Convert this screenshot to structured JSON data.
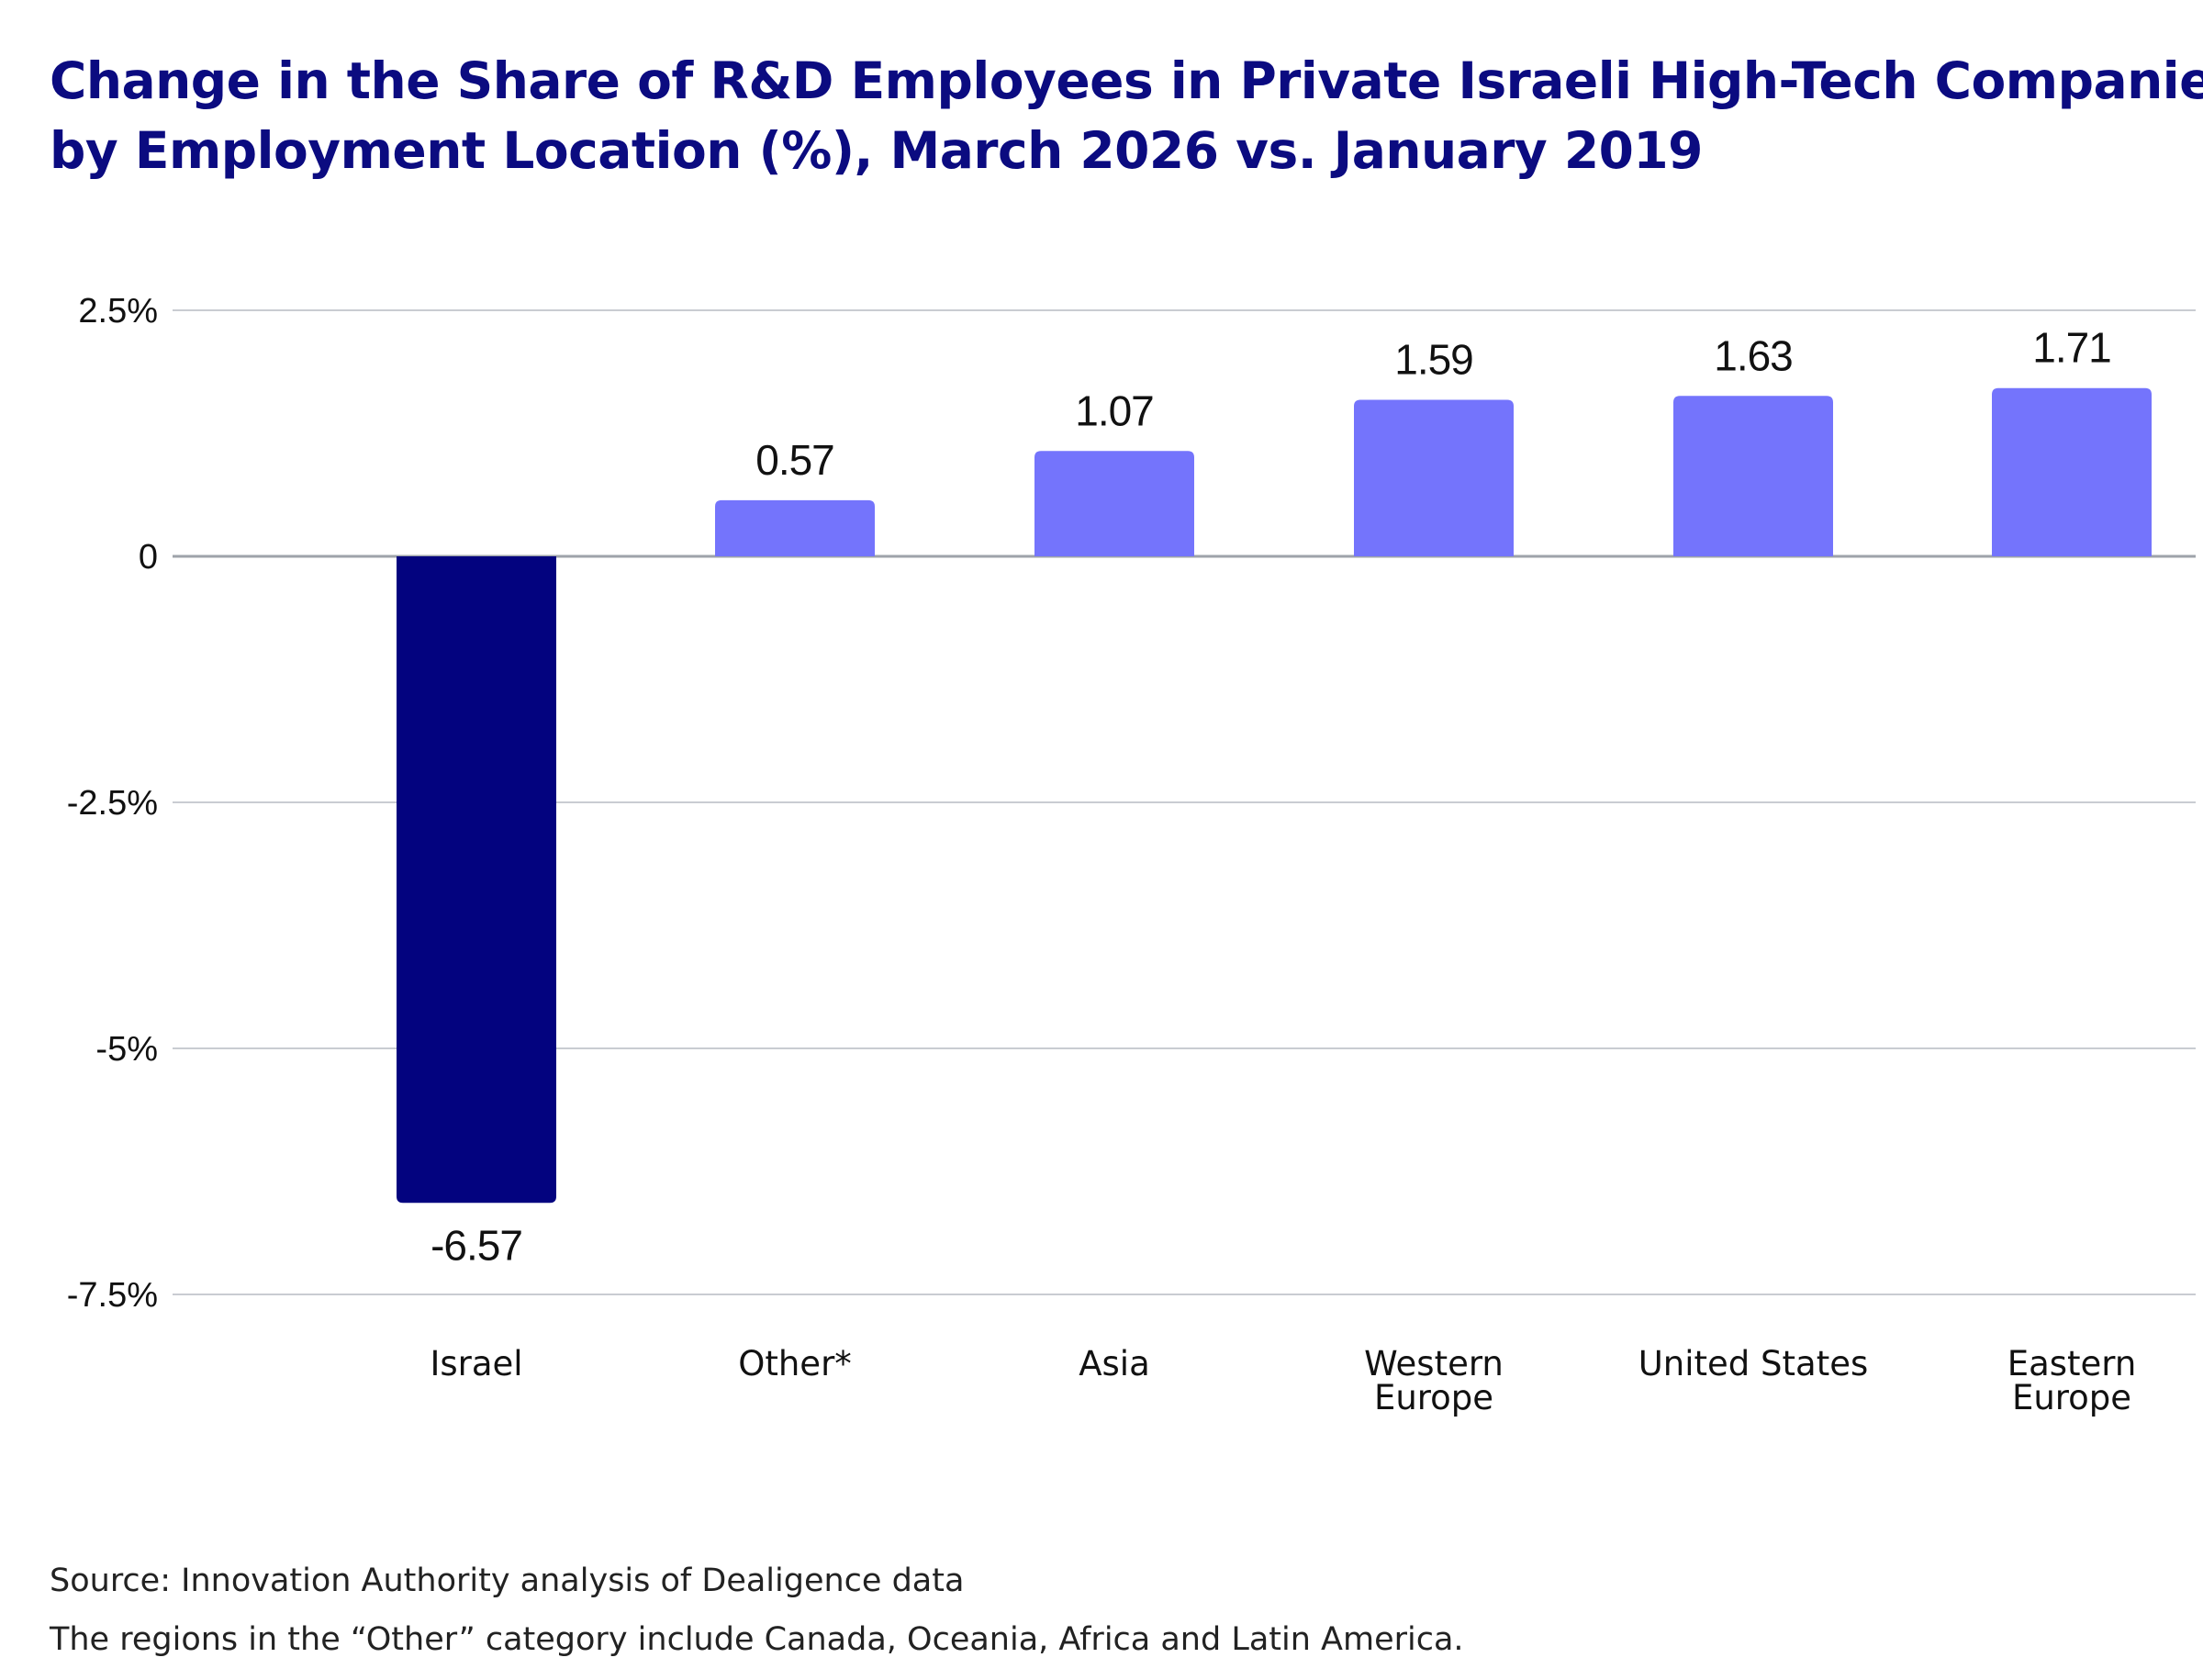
{
  "title": {
    "line1": "Change in the Share of R&D Employees in Private Israeli High-Tech Companies,",
    "line2": "by Employment Location (%), March 2026 vs. January 2019"
  },
  "chart_data": {
    "type": "bar",
    "categories": [
      "Israel",
      "Other*",
      "Asia",
      "Western Europe",
      "United States",
      "Eastern Europe"
    ],
    "category_lines": [
      [
        "Israel"
      ],
      [
        "Other*"
      ],
      [
        "Asia"
      ],
      [
        "Western",
        "Europe"
      ],
      [
        "United States"
      ],
      [
        "Eastern",
        "Europe"
      ]
    ],
    "values": [
      -6.57,
      0.57,
      1.07,
      1.59,
      1.63,
      1.71
    ],
    "data_labels": [
      "-6.57",
      "0.57",
      "1.07",
      "1.59",
      "1.63",
      "1.71"
    ],
    "yticks": [
      2.5,
      0,
      -2.5,
      -5,
      -7.5
    ],
    "ytick_labels": [
      "2.5%",
      "0",
      "-2.5%",
      "-5%",
      "-7.5%"
    ],
    "ylim": [
      -7.5,
      2.5
    ],
    "grid": true,
    "colors": {
      "negative": "#03037f",
      "positive": "#7474fc",
      "grid": "#c9ccd2",
      "zero_line": "#9ea3aa",
      "text": "#111111"
    }
  },
  "footer": {
    "source": "Source: Innovation Authority analysis of Dealigence data",
    "note": "The regions in the “Other” category include Canada, Oceania, Africa and Latin America."
  }
}
